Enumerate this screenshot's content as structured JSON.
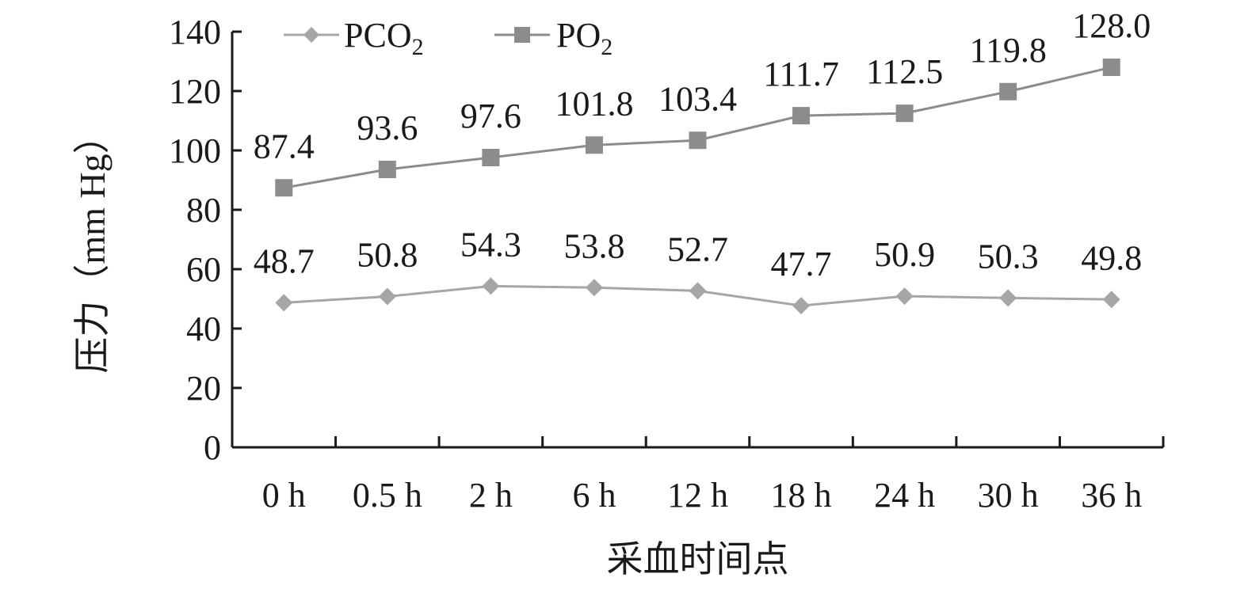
{
  "chart_data": {
    "type": "line",
    "title": "",
    "xlabel": "采血时间点",
    "ylabel": "压力（mm Hg）",
    "categories": [
      "0 h",
      "0.5 h",
      "2 h",
      "6 h",
      "12 h",
      "18 h",
      "24 h",
      "30 h",
      "36 h"
    ],
    "ylim": [
      0,
      140
    ],
    "yticks": [
      "0",
      "20",
      "40",
      "60",
      "80",
      "100",
      "120",
      "140"
    ],
    "grid": false,
    "legend_position": "top-left",
    "series": [
      {
        "name": "PCO2",
        "name_main": "PCO",
        "name_sub": "2",
        "marker": "diamond",
        "color": "#a6a6a6",
        "values": [
          48.7,
          50.8,
          54.3,
          53.8,
          52.7,
          47.7,
          50.9,
          50.3,
          49.8
        ],
        "labels": [
          "48.7",
          "50.8",
          "54.3",
          "53.8",
          "52.7",
          "47.7",
          "50.9",
          "50.3",
          "49.8"
        ]
      },
      {
        "name": "PO2",
        "name_main": "PO",
        "name_sub": "2",
        "marker": "square",
        "color": "#8c8c8c",
        "values": [
          87.4,
          93.6,
          97.6,
          101.8,
          103.4,
          111.7,
          112.5,
          119.8,
          128.0
        ],
        "labels": [
          "87.4",
          "93.6",
          "97.6",
          "101.8",
          "103.4",
          "111.7",
          "112.5",
          "119.8",
          "128.0"
        ]
      }
    ]
  }
}
